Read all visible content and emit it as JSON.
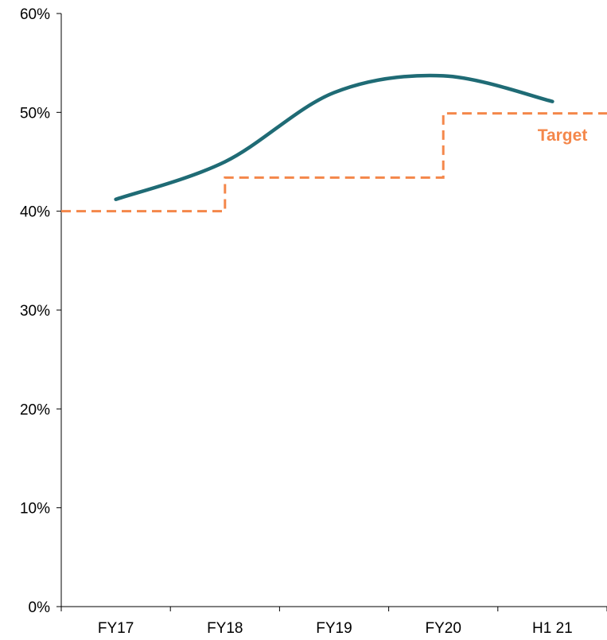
{
  "chart_data": {
    "type": "line",
    "categories": [
      "FY17",
      "FY18",
      "FY19",
      "FY20",
      "H1 21"
    ],
    "ylim": [
      0,
      60
    ],
    "y_ticks": [
      "0%",
      "10%",
      "20%",
      "30%",
      "40%",
      "50%",
      "60%"
    ],
    "y_tick_values": [
      0,
      10,
      20,
      30,
      40,
      50,
      60
    ],
    "grid": false,
    "series": [
      {
        "values": [
          41.2,
          45.0,
          52.0,
          53.7,
          51.1
        ],
        "color": "#1f6b75",
        "style": "solid-smooth"
      },
      {
        "name": "Target",
        "style": "dashed-step",
        "color": "#f4874a",
        "steps": [
          {
            "from": "FY17 start",
            "to": "FY18",
            "value": 40.0
          },
          {
            "from": "FY18",
            "to": "FY20",
            "value": 43.4
          },
          {
            "from": "FY20",
            "to": "H1 21 end",
            "value": 49.9
          }
        ]
      }
    ],
    "annotations": [
      {
        "text": "Target",
        "color": "#f4874a"
      }
    ]
  }
}
